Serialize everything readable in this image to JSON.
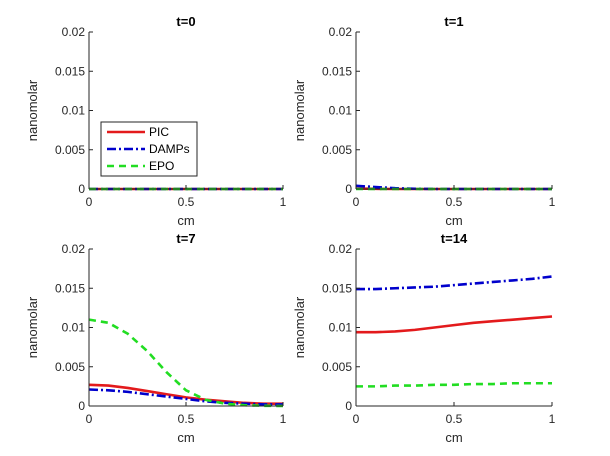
{
  "series_styles": [
    {
      "name": "PIC",
      "color": "#e31a1c",
      "dash": ""
    },
    {
      "name": "DAMPs",
      "color": "#0000cc",
      "dash": "9,3,2,3"
    },
    {
      "name": "EPO",
      "color": "#22dd22",
      "dash": "7,5"
    }
  ],
  "legend": {
    "entries": [
      "PIC",
      "DAMPs",
      "EPO"
    ],
    "location": "inside first panel, middle-left"
  },
  "chart_data": [
    {
      "type": "line",
      "title": "t=0",
      "xlabel": "cm",
      "ylabel": "nanomolar",
      "xlim": [
        0,
        1
      ],
      "ylim": [
        0,
        0.02
      ],
      "xticks": [
        "0",
        "0.5",
        "1"
      ],
      "yticks": [
        "0",
        "0.005",
        "0.01",
        "0.015",
        "0.02"
      ],
      "x": [
        0,
        0.1,
        0.2,
        0.3,
        0.4,
        0.5,
        0.6,
        0.7,
        0.8,
        0.9,
        1.0
      ],
      "series": [
        {
          "name": "PIC",
          "values": [
            0,
            0,
            0,
            0,
            0,
            0,
            0,
            0,
            0,
            0,
            0
          ]
        },
        {
          "name": "DAMPs",
          "values": [
            0,
            0,
            0,
            0,
            0,
            0,
            0,
            0,
            0,
            0,
            0
          ]
        },
        {
          "name": "EPO",
          "values": [
            0,
            0,
            0,
            0,
            0,
            0,
            0,
            0,
            0,
            0,
            0
          ]
        }
      ]
    },
    {
      "type": "line",
      "title": "t=1",
      "xlabel": "cm",
      "ylabel": "nanomolar",
      "xlim": [
        0,
        1
      ],
      "ylim": [
        0,
        0.02
      ],
      "xticks": [
        "0",
        "0.5",
        "1"
      ],
      "yticks": [
        "0",
        "0.005",
        "0.01",
        "0.015",
        "0.02"
      ],
      "x": [
        0,
        0.1,
        0.2,
        0.3,
        0.4,
        0.5,
        0.6,
        0.7,
        0.8,
        0.9,
        1.0
      ],
      "series": [
        {
          "name": "PIC",
          "values": [
            5e-05,
            2e-05,
            0,
            0,
            0,
            0,
            0,
            0,
            0,
            0,
            0
          ]
        },
        {
          "name": "DAMPs",
          "values": [
            0.0004,
            0.00025,
            0.0001,
            3e-05,
            0,
            0,
            0,
            0,
            0,
            0,
            0
          ]
        },
        {
          "name": "EPO",
          "values": [
            0,
            0,
            0,
            0,
            0,
            0,
            0,
            0,
            0,
            0,
            0
          ]
        }
      ]
    },
    {
      "type": "line",
      "title": "t=7",
      "xlabel": "cm",
      "ylabel": "nanomolar",
      "xlim": [
        0,
        1
      ],
      "ylim": [
        0,
        0.02
      ],
      "xticks": [
        "0",
        "0.5",
        "1"
      ],
      "yticks": [
        "0",
        "0.005",
        "0.01",
        "0.015",
        "0.02"
      ],
      "x": [
        0,
        0.1,
        0.2,
        0.3,
        0.4,
        0.5,
        0.6,
        0.7,
        0.8,
        0.9,
        1.0
      ],
      "series": [
        {
          "name": "PIC",
          "values": [
            0.0027,
            0.0026,
            0.0023,
            0.0019,
            0.0015,
            0.0011,
            0.0008,
            0.0006,
            0.0004,
            0.0003,
            0.0003
          ]
        },
        {
          "name": "DAMPs",
          "values": [
            0.0021,
            0.002,
            0.0018,
            0.0015,
            0.0012,
            0.0009,
            0.0006,
            0.0004,
            0.0003,
            0.0002,
            0.0002
          ]
        },
        {
          "name": "EPO",
          "values": [
            0.011,
            0.0106,
            0.0092,
            0.007,
            0.0043,
            0.002,
            0.0008,
            0.0003,
            0.0001,
            3e-05,
            0
          ]
        }
      ]
    },
    {
      "type": "line",
      "title": "t=14",
      "xlabel": "cm",
      "ylabel": "nanomolar",
      "xlim": [
        0,
        1
      ],
      "ylim": [
        0,
        0.02
      ],
      "xticks": [
        "0",
        "0.5",
        "1"
      ],
      "yticks": [
        "0",
        "0.005",
        "0.01",
        "0.015",
        "0.02"
      ],
      "x": [
        0,
        0.1,
        0.2,
        0.3,
        0.4,
        0.5,
        0.6,
        0.7,
        0.8,
        0.9,
        1.0
      ],
      "series": [
        {
          "name": "PIC",
          "values": [
            0.0094,
            0.0094,
            0.0095,
            0.0097,
            0.01,
            0.0103,
            0.0106,
            0.0108,
            0.011,
            0.0112,
            0.0114
          ]
        },
        {
          "name": "DAMPs",
          "values": [
            0.0149,
            0.0149,
            0.015,
            0.0151,
            0.0152,
            0.0154,
            0.0156,
            0.0158,
            0.016,
            0.0162,
            0.0165
          ]
        },
        {
          "name": "EPO",
          "values": [
            0.0025,
            0.0025,
            0.0026,
            0.0026,
            0.0027,
            0.0027,
            0.0028,
            0.0028,
            0.0029,
            0.0029,
            0.0029
          ]
        }
      ]
    }
  ]
}
